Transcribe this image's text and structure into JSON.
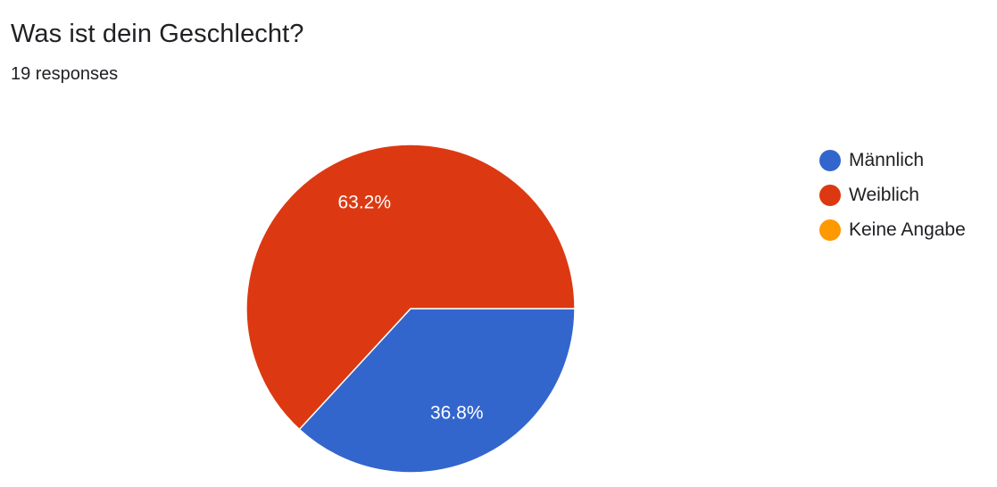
{
  "title": "Was ist dein Geschlecht?",
  "subtitle": "19 responses",
  "chart_data": {
    "type": "pie",
    "total_responses": 19,
    "slices": [
      {
        "label": "Männlich",
        "value": 7,
        "percent_label": "36.8%",
        "color": "#3366cc"
      },
      {
        "label": "Weiblich",
        "value": 12,
        "percent_label": "63.2%",
        "color": "#dc3912"
      },
      {
        "label": "Keine Angabe",
        "value": 0,
        "percent_label": "",
        "color": "#ff9900"
      }
    ],
    "legend_position": "right",
    "start_angle": "3 o'clock, clockwise"
  }
}
